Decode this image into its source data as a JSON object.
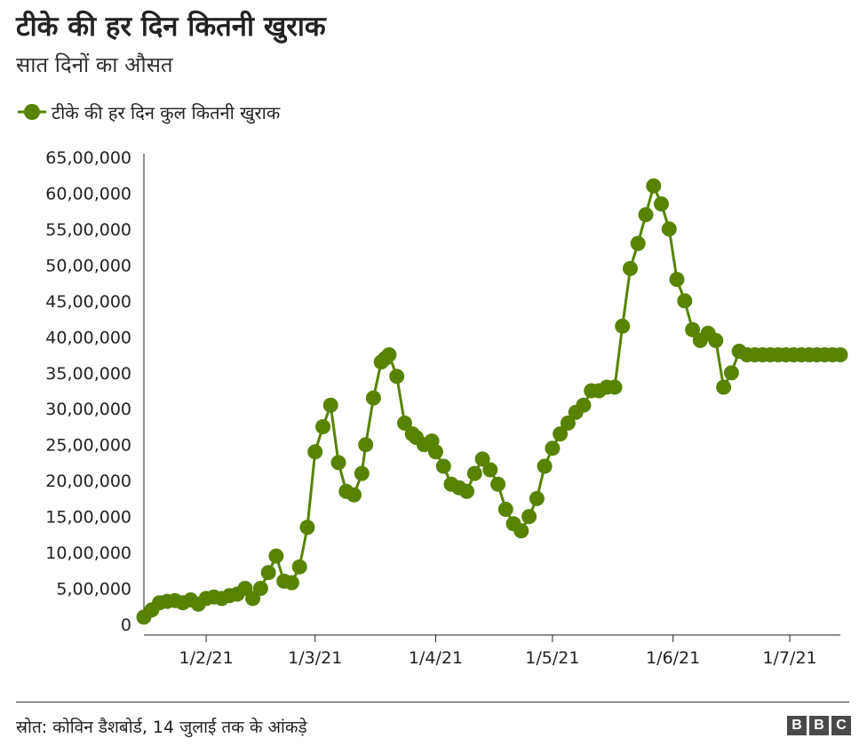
{
  "header": {
    "title": "टीके की हर दिन कितनी खुराक",
    "subtitle": "सात दिनों का औसत"
  },
  "legend": {
    "label": "टीके की हर दिन कुल कितनी खुराक",
    "marker_icon": "circle-marker-icon"
  },
  "footer": {
    "source": "स्रोत: कोविन डैशबोर्ड, 14 जुलाई तक के आंकड़े",
    "logo_letters": [
      "B",
      "B",
      "C"
    ]
  },
  "colors": {
    "series": "#588300",
    "axis": "#222222",
    "text": "#222222"
  },
  "chart_data": {
    "type": "line",
    "title": "टीके की हर दिन कितनी खुराक",
    "subtitle": "सात दिनों का औसत",
    "xlabel": "",
    "ylabel": "",
    "x_ticks": [
      "1/2/21",
      "1/3/21",
      "1/4/21",
      "1/5/21",
      "1/6/21",
      "1/7/21"
    ],
    "y_ticks": [
      "0",
      "5,00,000",
      "10,00,000",
      "15,00,000",
      "20,00,000",
      "25,00,000",
      "30,00,000",
      "35,00,000",
      "40,00,000",
      "45,00,000",
      "50,00,000",
      "55,00,000",
      "60,00,000",
      "65,00,000"
    ],
    "ylim": [
      0,
      6500000
    ],
    "xlim": [
      "2021-01-16",
      "2021-07-14"
    ],
    "grid": false,
    "legend_position": "top-left",
    "series": [
      {
        "name": "टीके की हर दिन कुल कितनी खुराक",
        "x": [
          "2021-01-16",
          "2021-01-18",
          "2021-01-20",
          "2021-01-22",
          "2021-01-24",
          "2021-01-26",
          "2021-01-28",
          "2021-01-30",
          "2021-02-01",
          "2021-02-03",
          "2021-02-05",
          "2021-02-07",
          "2021-02-09",
          "2021-02-11",
          "2021-02-13",
          "2021-02-15",
          "2021-02-17",
          "2021-02-19",
          "2021-02-21",
          "2021-02-23",
          "2021-02-25",
          "2021-02-27",
          "2021-03-01",
          "2021-03-03",
          "2021-03-05",
          "2021-03-07",
          "2021-03-09",
          "2021-03-11",
          "2021-03-13",
          "2021-03-14",
          "2021-03-16",
          "2021-03-18",
          "2021-03-19",
          "2021-03-20",
          "2021-03-22",
          "2021-03-24",
          "2021-03-26",
          "2021-03-27",
          "2021-03-29",
          "2021-03-31",
          "2021-04-01",
          "2021-04-03",
          "2021-04-05",
          "2021-04-07",
          "2021-04-09",
          "2021-04-11",
          "2021-04-13",
          "2021-04-15",
          "2021-04-17",
          "2021-04-19",
          "2021-04-21",
          "2021-04-23",
          "2021-04-25",
          "2021-04-27",
          "2021-04-29",
          "2021-05-01",
          "2021-05-03",
          "2021-05-05",
          "2021-05-07",
          "2021-05-09",
          "2021-05-11",
          "2021-05-13",
          "2021-05-15",
          "2021-05-17",
          "2021-05-19",
          "2021-05-21",
          "2021-05-23",
          "2021-05-25",
          "2021-05-27",
          "2021-05-29",
          "2021-05-31",
          "2021-06-02",
          "2021-06-04",
          "2021-06-06",
          "2021-06-08",
          "2021-06-10",
          "2021-06-12",
          "2021-06-14",
          "2021-06-16",
          "2021-06-18",
          "2021-06-20",
          "2021-06-22",
          "2021-06-24",
          "2021-06-26",
          "2021-06-28",
          "2021-06-30",
          "2021-07-02",
          "2021-07-04",
          "2021-07-06",
          "2021-07-08",
          "2021-07-10",
          "2021-07-12",
          "2021-07-14"
        ],
        "values": [
          100000,
          200000,
          300000,
          320000,
          330000,
          300000,
          340000,
          280000,
          360000,
          380000,
          360000,
          400000,
          420000,
          500000,
          360000,
          500000,
          720000,
          950000,
          600000,
          580000,
          800000,
          1350000,
          2400000,
          2750000,
          3050000,
          2250000,
          1850000,
          1800000,
          2100000,
          2500000,
          3150000,
          3650000,
          3700000,
          3750000,
          3450000,
          2800000,
          2650000,
          2600000,
          2500000,
          2550000,
          2400000,
          2200000,
          1950000,
          1900000,
          1850000,
          2100000,
          2300000,
          2150000,
          1950000,
          1600000,
          1400000,
          1300000,
          1500000,
          1750000,
          2200000,
          2450000,
          2650000,
          2800000,
          2950000,
          3050000,
          3250000,
          3250000,
          3300000,
          3300000,
          4150000,
          4950000,
          5300000,
          5700000,
          6100000,
          5850000,
          5500000,
          4800000,
          4500000,
          4100000,
          3950000,
          4050000,
          3950000,
          3300000,
          3500000,
          3800000,
          3750000,
          3750000,
          3750000,
          3750000,
          3750000,
          3750000,
          3750000,
          3750000,
          3750000,
          3750000,
          3750000,
          3750000,
          3750000
        ],
        "values_note_removed": null
      }
    ]
  }
}
